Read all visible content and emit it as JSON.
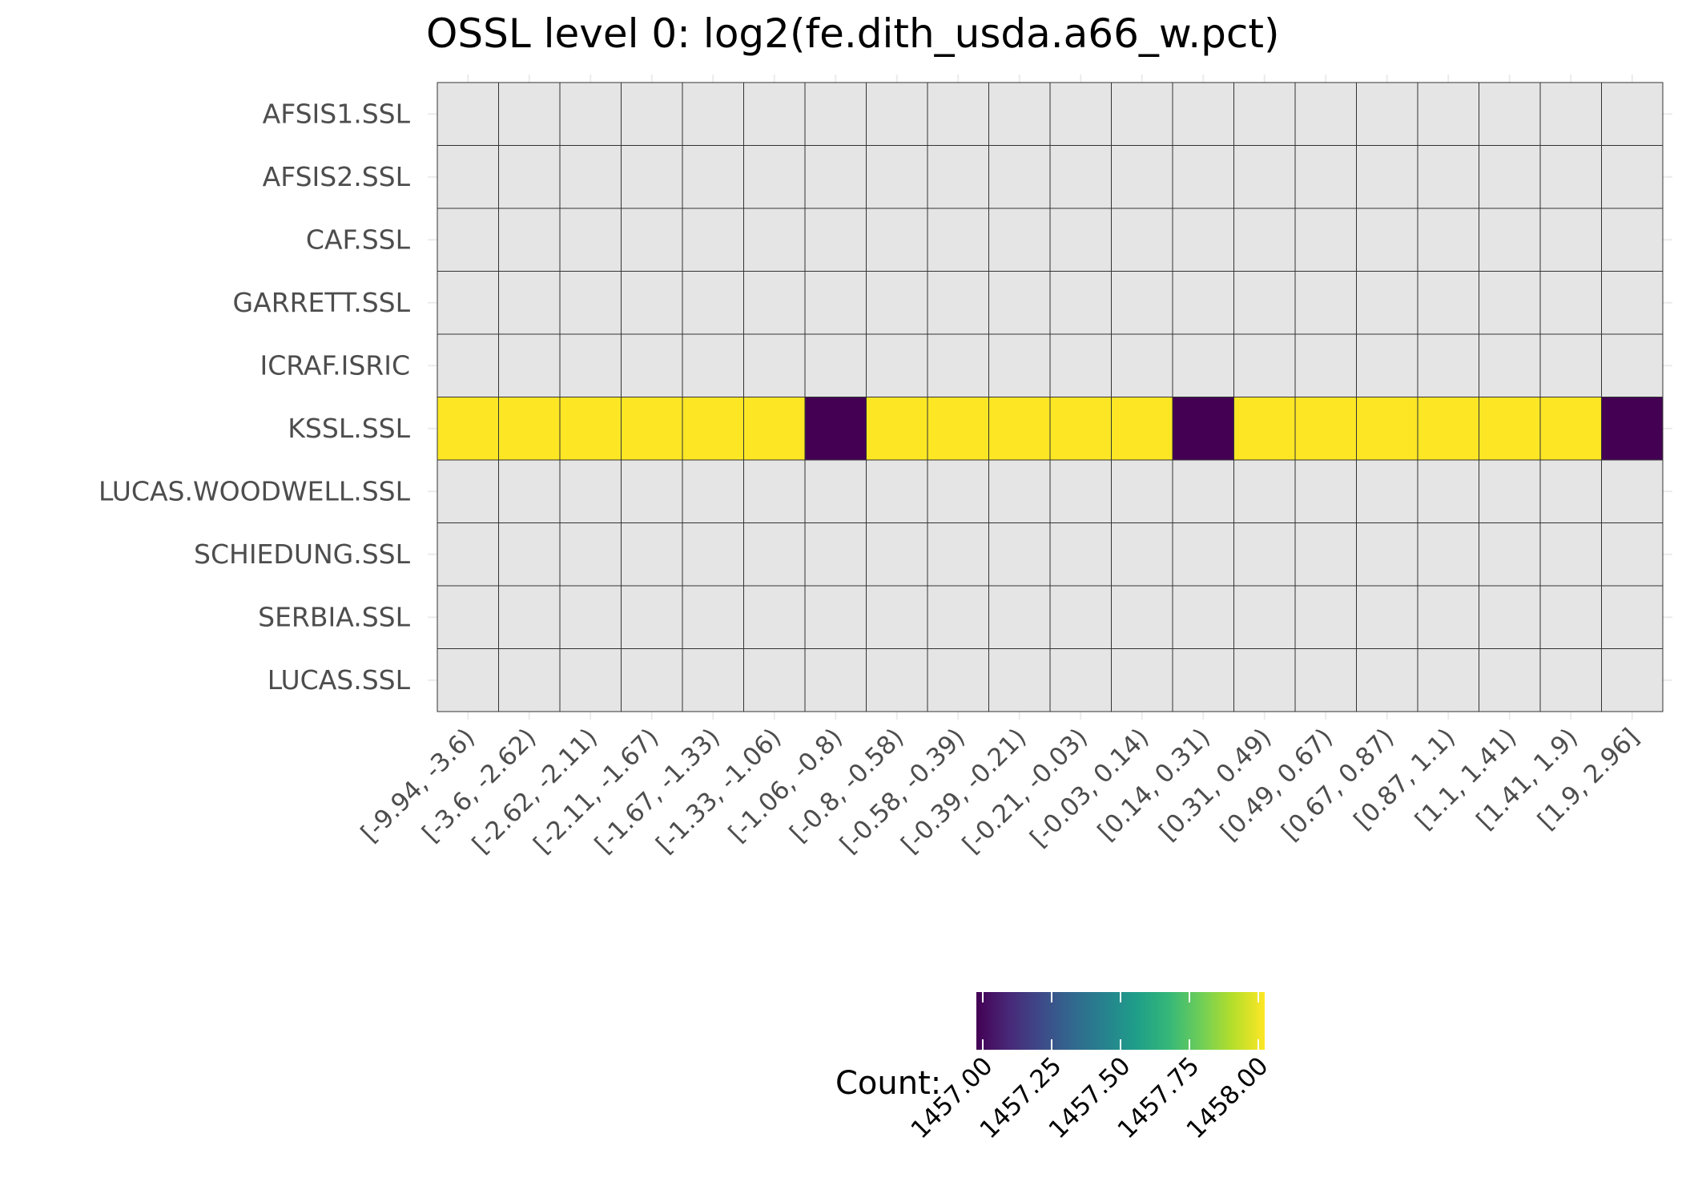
{
  "chart_data": {
    "type": "heatmap",
    "title": "OSSL level 0: log2(fe.dith_usda.a66_w.pct)",
    "x_categories": [
      "[-9.94, -3.6)",
      "[-3.6, -2.62)",
      "[-2.62, -2.11)",
      "[-2.11, -1.67)",
      "[-1.67, -1.33)",
      "[-1.33, -1.06)",
      "[-1.06, -0.8)",
      "[-0.8, -0.58)",
      "[-0.58, -0.39)",
      "[-0.39, -0.21)",
      "[-0.21, -0.03)",
      "[-0.03, 0.14)",
      "[0.14, 0.31)",
      "[0.31, 0.49)",
      "[0.49, 0.67)",
      "[0.67, 0.87)",
      "[0.87, 1.1)",
      "[1.1, 1.41)",
      "[1.41, 1.9)",
      "[1.9, 2.96]"
    ],
    "y_categories": [
      "AFSIS1.SSL",
      "AFSIS2.SSL",
      "CAF.SSL",
      "GARRETT.SSL",
      "ICRAF.ISRIC",
      "KSSL.SSL",
      "LUCAS.WOODWELL.SSL",
      "SCHIEDUNG.SSL",
      "SERBIA.SSL",
      "LUCAS.SSL"
    ],
    "values": [
      [
        null,
        null,
        null,
        null,
        null,
        null,
        null,
        null,
        null,
        null,
        null,
        null,
        null,
        null,
        null,
        null,
        null,
        null,
        null,
        null
      ],
      [
        null,
        null,
        null,
        null,
        null,
        null,
        null,
        null,
        null,
        null,
        null,
        null,
        null,
        null,
        null,
        null,
        null,
        null,
        null,
        null
      ],
      [
        null,
        null,
        null,
        null,
        null,
        null,
        null,
        null,
        null,
        null,
        null,
        null,
        null,
        null,
        null,
        null,
        null,
        null,
        null,
        null
      ],
      [
        null,
        null,
        null,
        null,
        null,
        null,
        null,
        null,
        null,
        null,
        null,
        null,
        null,
        null,
        null,
        null,
        null,
        null,
        null,
        null
      ],
      [
        null,
        null,
        null,
        null,
        null,
        null,
        null,
        null,
        null,
        null,
        null,
        null,
        null,
        null,
        null,
        null,
        null,
        null,
        null,
        null
      ],
      [
        1458,
        1458,
        1458,
        1458,
        1458,
        1458,
        1457,
        1458,
        1458,
        1458,
        1458,
        1458,
        1457,
        1458,
        1458,
        1458,
        1458,
        1458,
        1458,
        1457
      ],
      [
        null,
        null,
        null,
        null,
        null,
        null,
        null,
        null,
        null,
        null,
        null,
        null,
        null,
        null,
        null,
        null,
        null,
        null,
        null,
        null
      ],
      [
        null,
        null,
        null,
        null,
        null,
        null,
        null,
        null,
        null,
        null,
        null,
        null,
        null,
        null,
        null,
        null,
        null,
        null,
        null,
        null
      ],
      [
        null,
        null,
        null,
        null,
        null,
        null,
        null,
        null,
        null,
        null,
        null,
        null,
        null,
        null,
        null,
        null,
        null,
        null,
        null,
        null
      ],
      [
        null,
        null,
        null,
        null,
        null,
        null,
        null,
        null,
        null,
        null,
        null,
        null,
        null,
        null,
        null,
        null,
        null,
        null,
        null,
        null
      ]
    ],
    "legend": {
      "title": "Count:",
      "tick_labels": [
        "1457.00",
        "1457.25",
        "1457.50",
        "1457.75",
        "1458.00"
      ],
      "range": [
        1457,
        1458
      ],
      "placement": "bottom"
    },
    "colors": {
      "missing": "#e5e5e5",
      "low": "#440154",
      "high": "#fde725",
      "cell_border": "#333333",
      "grid": "#ebebeb",
      "tick_text": "#4d4d4d",
      "viridis": [
        "#440154",
        "#482878",
        "#3e4989",
        "#31688e",
        "#26828e",
        "#1f9e89",
        "#35b779",
        "#6ece58",
        "#b5de2b",
        "#fde725"
      ]
    },
    "grid": true
  }
}
